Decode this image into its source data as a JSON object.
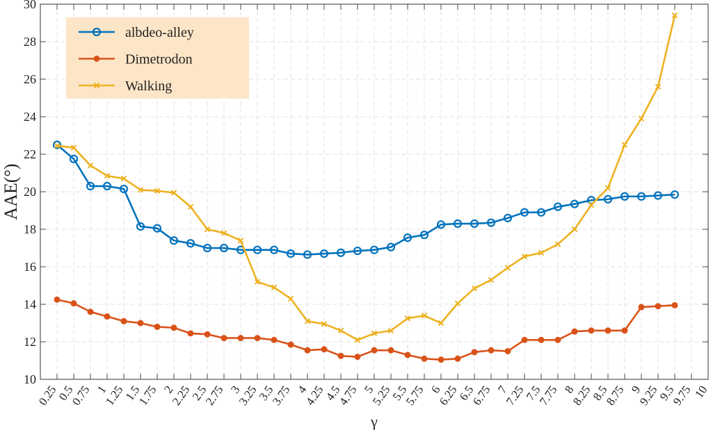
{
  "chart_data": {
    "type": "line",
    "title": "",
    "xlabel": "γ",
    "ylabel": "AAE(°)",
    "xlim": [
      0,
      10
    ],
    "ylim": [
      10,
      30
    ],
    "xticks": [
      "0.25",
      "0.5",
      "0.75",
      "1",
      "1.25",
      "1.5",
      "1.75",
      "2",
      "2.25",
      "2.5",
      "2.75",
      "3",
      "3.25",
      "3.5",
      "3.75",
      "4",
      "4.25",
      "4.5",
      "4.75",
      "5",
      "5.25",
      "5.5",
      "5.75",
      "6",
      "6.25",
      "6.5",
      "6.75",
      "7",
      "7.25",
      "7.5",
      "7.75",
      "8",
      "8.25",
      "8.5",
      "8.75",
      "9",
      "9.25",
      "9.5",
      "9.75",
      "10"
    ],
    "yticks": [
      "10",
      "12",
      "14",
      "16",
      "18",
      "20",
      "22",
      "24",
      "26",
      "28",
      "30"
    ],
    "grid": true,
    "legend_position": "top-left",
    "legend_background": "#fde6c8",
    "x": [
      0.25,
      0.5,
      0.75,
      1,
      1.25,
      1.5,
      1.75,
      2,
      2.25,
      2.5,
      2.75,
      3,
      3.25,
      3.5,
      3.75,
      4,
      4.25,
      4.5,
      4.75,
      5,
      5.25,
      5.5,
      5.75,
      6,
      6.25,
      6.5,
      6.75,
      7,
      7.25,
      7.5,
      7.75,
      8,
      8.25,
      8.5,
      8.75,
      9,
      9.25,
      9.5
    ],
    "series": [
      {
        "name": "albdeo-alley",
        "color": "#0072bd",
        "marker": "circle",
        "values": [
          22.5,
          21.75,
          20.3,
          20.3,
          20.15,
          18.15,
          18.05,
          17.4,
          17.25,
          17.0,
          17.0,
          16.9,
          16.9,
          16.9,
          16.7,
          16.65,
          16.7,
          16.75,
          16.85,
          16.9,
          17.05,
          17.55,
          17.7,
          18.25,
          18.3,
          18.3,
          18.35,
          18.6,
          18.9,
          18.9,
          19.2,
          19.35,
          19.55,
          19.6,
          19.75,
          19.75,
          19.8,
          19.85
        ]
      },
      {
        "name": "Dimetrodon",
        "color": "#d95319",
        "marker": "dot",
        "values": [
          14.25,
          14.05,
          13.6,
          13.35,
          13.1,
          13.0,
          12.8,
          12.75,
          12.45,
          12.4,
          12.2,
          12.2,
          12.2,
          12.1,
          11.85,
          11.55,
          11.6,
          11.25,
          11.2,
          11.55,
          11.55,
          11.3,
          11.1,
          11.05,
          11.1,
          11.45,
          11.55,
          11.5,
          12.1,
          12.1,
          12.1,
          12.55,
          12.6,
          12.6,
          12.6,
          13.85,
          13.9,
          13.95
        ]
      },
      {
        "name": "Walking",
        "color": "#edb120",
        "marker": "x",
        "values": [
          22.45,
          22.35,
          21.4,
          20.85,
          20.7,
          20.1,
          20.05,
          19.95,
          19.2,
          18.0,
          17.8,
          17.4,
          15.2,
          14.9,
          14.3,
          13.1,
          12.95,
          12.6,
          12.1,
          12.45,
          12.6,
          13.25,
          13.4,
          13.0,
          14.05,
          14.85,
          15.3,
          15.95,
          16.55,
          16.75,
          17.2,
          18.0,
          19.3,
          20.2,
          22.5,
          23.9,
          25.6,
          29.4
        ]
      }
    ]
  }
}
